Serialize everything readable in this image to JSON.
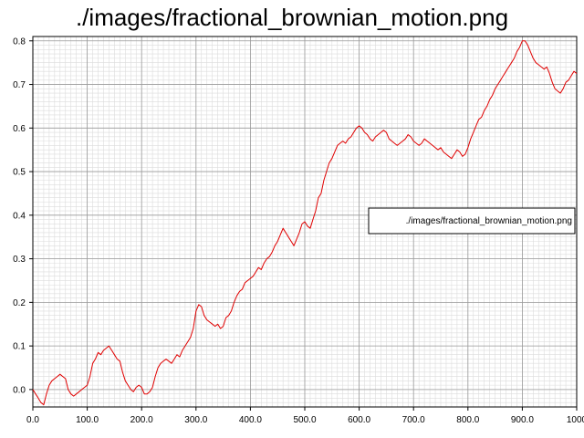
{
  "chart_data": {
    "type": "line",
    "title": "./images/fractional_brownian_motion.png",
    "xlabel": "",
    "ylabel": "",
    "xlim": [
      0,
      1000
    ],
    "ylim": [
      -0.04,
      0.81
    ],
    "x_ticks": [
      0,
      100,
      200,
      300,
      400,
      500,
      600,
      700,
      800,
      900,
      1000
    ],
    "x_tick_labels": [
      "0.0",
      "100.0",
      "200.0",
      "300.0",
      "400.0",
      "500.0",
      "600.0",
      "700.0",
      "800.0",
      "900.0",
      "1000"
    ],
    "y_ticks": [
      0.0,
      0.1,
      0.2,
      0.3,
      0.4,
      0.5,
      0.6,
      0.7,
      0.8
    ],
    "y_tick_labels": [
      "0.0",
      "0.1",
      "0.2",
      "0.3",
      "0.4",
      "0.5",
      "0.6",
      "0.7",
      "0.8"
    ],
    "grid": true,
    "minor_grid": true,
    "legend_position": "right",
    "series": [
      {
        "name": "./images/fractional_brownian_motion.png",
        "color": "#e00000",
        "x": [
          0,
          5,
          10,
          15,
          20,
          25,
          30,
          35,
          40,
          45,
          50,
          55,
          60,
          65,
          70,
          75,
          80,
          85,
          90,
          95,
          100,
          105,
          110,
          115,
          120,
          125,
          130,
          135,
          140,
          145,
          150,
          155,
          160,
          165,
          170,
          175,
          180,
          185,
          190,
          195,
          200,
          205,
          210,
          215,
          220,
          225,
          230,
          235,
          240,
          245,
          250,
          255,
          260,
          265,
          270,
          275,
          280,
          285,
          290,
          295,
          300,
          305,
          310,
          315,
          320,
          325,
          330,
          335,
          340,
          345,
          350,
          355,
          360,
          365,
          370,
          375,
          380,
          385,
          390,
          395,
          400,
          405,
          410,
          415,
          420,
          425,
          430,
          435,
          440,
          445,
          450,
          455,
          460,
          465,
          470,
          475,
          480,
          485,
          490,
          495,
          500,
          505,
          510,
          515,
          520,
          525,
          530,
          535,
          540,
          545,
          550,
          555,
          560,
          565,
          570,
          575,
          580,
          585,
          590,
          595,
          600,
          605,
          610,
          615,
          620,
          625,
          630,
          635,
          640,
          645,
          650,
          655,
          660,
          665,
          670,
          675,
          680,
          685,
          690,
          695,
          700,
          705,
          710,
          715,
          720,
          725,
          730,
          735,
          740,
          745,
          750,
          755,
          760,
          765,
          770,
          775,
          780,
          785,
          790,
          795,
          800,
          805,
          810,
          815,
          820,
          825,
          830,
          835,
          840,
          845,
          850,
          855,
          860,
          865,
          870,
          875,
          880,
          885,
          890,
          895,
          900,
          905,
          910,
          915,
          920,
          925,
          930,
          935,
          940,
          945,
          950,
          955,
          960,
          965,
          970,
          975,
          980,
          985,
          990,
          995,
          1000
        ],
        "y": [
          0.0,
          -0.01,
          -0.02,
          -0.03,
          -0.035,
          -0.01,
          0.01,
          0.02,
          0.025,
          0.03,
          0.035,
          0.03,
          0.025,
          0.0,
          -0.01,
          -0.015,
          -0.01,
          -0.005,
          0.0,
          0.005,
          0.01,
          0.03,
          0.06,
          0.07,
          0.085,
          0.08,
          0.09,
          0.095,
          0.1,
          0.09,
          0.08,
          0.07,
          0.065,
          0.04,
          0.02,
          0.01,
          0.0,
          -0.005,
          0.005,
          0.01,
          0.005,
          -0.01,
          -0.01,
          -0.005,
          0.005,
          0.03,
          0.05,
          0.06,
          0.065,
          0.07,
          0.065,
          0.06,
          0.07,
          0.08,
          0.075,
          0.09,
          0.1,
          0.11,
          0.12,
          0.14,
          0.18,
          0.195,
          0.19,
          0.17,
          0.16,
          0.155,
          0.15,
          0.145,
          0.15,
          0.14,
          0.145,
          0.165,
          0.17,
          0.18,
          0.2,
          0.215,
          0.225,
          0.23,
          0.245,
          0.25,
          0.255,
          0.26,
          0.27,
          0.28,
          0.275,
          0.29,
          0.3,
          0.305,
          0.315,
          0.33,
          0.34,
          0.355,
          0.37,
          0.36,
          0.35,
          0.34,
          0.33,
          0.345,
          0.36,
          0.38,
          0.385,
          0.375,
          0.37,
          0.39,
          0.41,
          0.44,
          0.45,
          0.48,
          0.5,
          0.52,
          0.53,
          0.545,
          0.56,
          0.565,
          0.57,
          0.565,
          0.575,
          0.58,
          0.59,
          0.6,
          0.605,
          0.6,
          0.59,
          0.585,
          0.575,
          0.57,
          0.58,
          0.585,
          0.59,
          0.595,
          0.59,
          0.575,
          0.57,
          0.565,
          0.56,
          0.565,
          0.57,
          0.575,
          0.585,
          0.58,
          0.57,
          0.565,
          0.56,
          0.565,
          0.575,
          0.57,
          0.565,
          0.56,
          0.555,
          0.55,
          0.555,
          0.545,
          0.54,
          0.535,
          0.53,
          0.54,
          0.55,
          0.545,
          0.535,
          0.54,
          0.555,
          0.575,
          0.59,
          0.605,
          0.62,
          0.625,
          0.64,
          0.65,
          0.665,
          0.675,
          0.69,
          0.7,
          0.71,
          0.72,
          0.73,
          0.74,
          0.75,
          0.76,
          0.775,
          0.785,
          0.8,
          0.8,
          0.79,
          0.775,
          0.76,
          0.75,
          0.745,
          0.74,
          0.735,
          0.74,
          0.725,
          0.705,
          0.69,
          0.685,
          0.68,
          0.69,
          0.705,
          0.71,
          0.72,
          0.73,
          0.725
        ]
      }
    ]
  }
}
